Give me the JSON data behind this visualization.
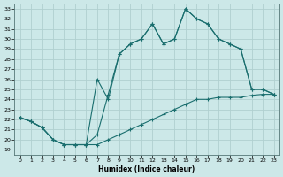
{
  "xlabel": "Humidex (Indice chaleur)",
  "background_color": "#cce8e8",
  "grid_color": "#b0d0d0",
  "line_color": "#1a6e6e",
  "ylim": [
    18.5,
    33.5
  ],
  "xlim": [
    -0.5,
    23.5
  ],
  "yticks": [
    19,
    20,
    21,
    22,
    23,
    24,
    25,
    26,
    27,
    28,
    29,
    30,
    31,
    32,
    33
  ],
  "xticks": [
    0,
    1,
    2,
    3,
    4,
    5,
    6,
    7,
    8,
    9,
    10,
    11,
    12,
    13,
    14,
    15,
    16,
    17,
    18,
    19,
    20,
    21,
    22,
    23
  ],
  "line1_x": [
    0,
    1,
    2,
    3,
    4,
    5,
    6,
    7,
    8,
    9,
    10,
    11,
    12,
    13,
    14,
    15,
    16,
    17,
    18,
    19,
    20,
    21,
    22,
    23
  ],
  "line1_y": [
    22.2,
    21.8,
    21.2,
    20.0,
    19.5,
    19.5,
    19.5,
    19.5,
    20.0,
    20.5,
    21.0,
    21.5,
    22.0,
    22.5,
    23.0,
    23.5,
    24.0,
    24.0,
    24.2,
    24.2,
    24.2,
    24.4,
    24.5,
    24.5
  ],
  "line2_x": [
    0,
    1,
    2,
    3,
    4,
    5,
    6,
    7,
    8,
    9,
    10,
    11,
    12,
    13,
    14,
    15,
    16,
    17,
    18,
    19,
    20,
    21,
    22,
    23
  ],
  "line2_y": [
    22.2,
    21.8,
    21.2,
    20.0,
    19.5,
    19.5,
    19.5,
    26.0,
    24.0,
    28.5,
    29.5,
    30.0,
    31.5,
    29.5,
    30.0,
    33.0,
    32.0,
    31.5,
    30.0,
    29.5,
    29.0,
    25.0,
    25.0,
    24.5
  ],
  "line3_x": [
    0,
    1,
    2,
    3,
    4,
    5,
    6,
    7,
    8,
    9,
    10,
    11,
    12,
    13,
    14,
    15,
    16,
    17,
    18,
    19,
    20,
    21,
    22,
    23
  ],
  "line3_y": [
    22.2,
    21.8,
    21.2,
    20.0,
    19.5,
    19.5,
    19.5,
    20.5,
    24.5,
    28.5,
    29.5,
    30.0,
    31.5,
    29.5,
    30.0,
    33.0,
    32.0,
    31.5,
    30.0,
    29.5,
    29.0,
    25.0,
    25.0,
    24.5
  ]
}
